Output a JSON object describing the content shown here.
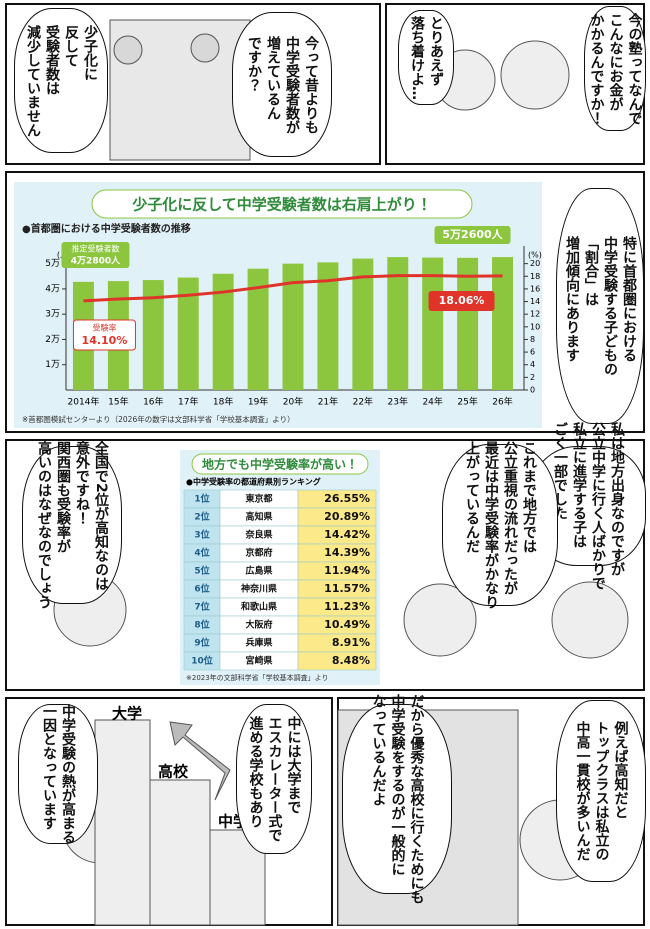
{
  "panels": [
    {
      "bubbles": [
        {
          "lines": [
            "今の塾ってなんで",
            "こんなにお金が",
            "かかるんですか！"
          ]
        },
        {
          "lines": [
            "とりあえず",
            "落ち着けよ…"
          ]
        },
        {
          "lines": [
            "今って昔よりも",
            "中学受験者数が",
            "増えているん",
            "ですか？"
          ]
        },
        {
          "lines": [
            "少子化に",
            "反して",
            "受験者数は",
            "減少していません"
          ]
        }
      ]
    },
    {
      "bubbles": [
        {
          "lines": [
            "特に首都圏における",
            "中学受験する子どもの",
            "「割合」は",
            "増加傾向にあります"
          ]
        }
      ]
    },
    {
      "bubbles": [
        {
          "lines": [
            "私は地方出身なのですが",
            "公立中学に行く人ばかりで",
            "私立に進学する子は",
            "ごく一部でした"
          ]
        },
        {
          "lines": [
            "これまで地方では",
            "公立重視の流れだったが",
            "最近は中学受験率がかなり",
            "上がっているんだ"
          ]
        },
        {
          "lines": [
            "全国で2位が高知なのは",
            "意外ですね！",
            "関西圏も受験率が",
            "高いのはなぜなのでしょう"
          ]
        }
      ]
    },
    {
      "bubbles": [
        {
          "lines": [
            "例えば高知だと",
            "トップクラスは私立の",
            "中高一貫校が多いんだ"
          ]
        },
        {
          "lines": [
            "だから優秀な高校に行くためにも",
            "中学受験をするのが一般的に",
            "なっているんだよ"
          ]
        },
        {
          "lines": [
            "中には大学まで",
            "エスカレーター式で",
            "進める学校もあり"
          ]
        },
        {
          "lines": [
            "中学受験の熱が高まる",
            "一因となっています"
          ]
        }
      ],
      "labels": [
        "大学",
        "高校",
        "中学"
      ]
    }
  ],
  "chart_data": {
    "type": "bar",
    "title": "少子化に反して中学受験者数は右肩上がり！",
    "subtitle": "●首都圏における中学受験者数の推移",
    "note": "※首都圏模試センターより（2026年の数字は文部科学省「学校基本調査」より）",
    "categories": [
      "2014年",
      "15年",
      "16年",
      "17年",
      "18年",
      "19年",
      "20年",
      "21年",
      "22年",
      "23年",
      "24年",
      "25年",
      "26年"
    ],
    "series": [
      {
        "name": "推定受験者数",
        "color": "#8cc63f",
        "values": [
          42800,
          43100,
          43500,
          44500,
          46000,
          48000,
          50000,
          50500,
          52000,
          52600,
          52400,
          52300,
          52600
        ],
        "value_labels": [
          "4万2800人",
          null,
          null,
          null,
          null,
          null,
          null,
          null,
          null,
          null,
          null,
          null,
          "5万2600人"
        ]
      },
      {
        "name": "受験率",
        "color": "#e0342a",
        "type": "line",
        "axis": "y2",
        "values": [
          14.1,
          14.4,
          14.6,
          15.0,
          15.5,
          16.2,
          17.0,
          17.3,
          17.9,
          18.1,
          18.1,
          18.0,
          18.06
        ],
        "value_labels": [
          "14.10%",
          null,
          null,
          null,
          null,
          null,
          null,
          null,
          null,
          null,
          null,
          null,
          "18.06%"
        ]
      }
    ],
    "y_label": "(人)",
    "y2_label": "(%)",
    "ylim": [
      0,
      55000
    ],
    "yticks": [
      {
        "value": 10000,
        "label": "1万"
      },
      {
        "value": 20000,
        "label": "2万"
      },
      {
        "value": 30000,
        "label": "3万"
      },
      {
        "value": 40000,
        "label": "4万"
      },
      {
        "value": 50000,
        "label": "5万"
      }
    ],
    "y2lim": [
      0,
      22
    ],
    "y2ticks": [
      0,
      2,
      4,
      6,
      8,
      10,
      12,
      14,
      16,
      18,
      20
    ],
    "grid": false
  },
  "table": {
    "title": "地方でも中学受験率が高い！",
    "subtitle": "●中学受験率の都道府県別ランキング",
    "rows": [
      [
        "1位",
        "東京都",
        "26.55%"
      ],
      [
        "2位",
        "高知県",
        "20.89%"
      ],
      [
        "3位",
        "奈良県",
        "14.42%"
      ],
      [
        "4位",
        "京都府",
        "14.39%"
      ],
      [
        "5位",
        "広島県",
        "11.94%"
      ],
      [
        "6位",
        "神奈川県",
        "11.57%"
      ],
      [
        "7位",
        "和歌山県",
        "11.23%"
      ],
      [
        "8位",
        "大阪府",
        "10.49%"
      ],
      [
        "9位",
        "兵庫県",
        "8.91%"
      ],
      [
        "10位",
        "宮崎県",
        "8.48%"
      ]
    ],
    "note": "※2023年の文部科学省「学校基本調査」より"
  }
}
